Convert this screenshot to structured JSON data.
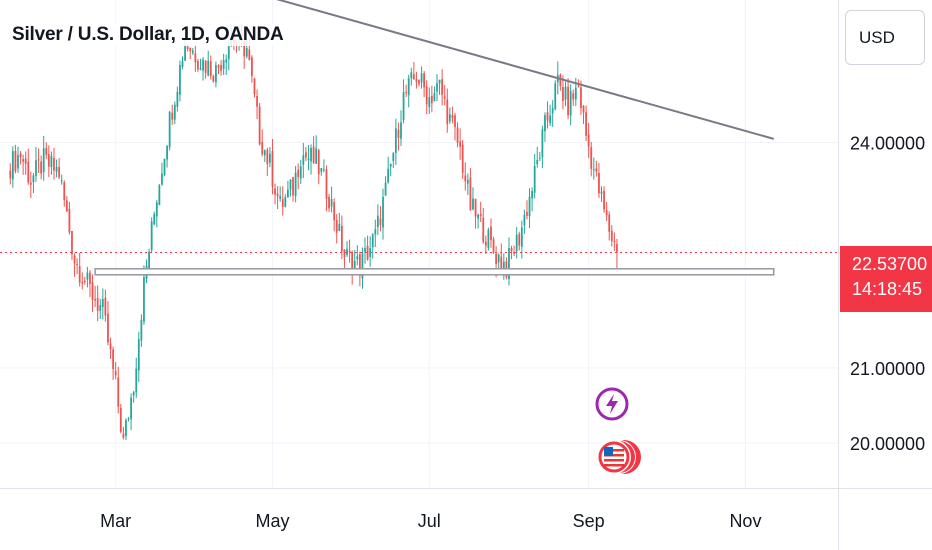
{
  "title": "Silver / U.S. Dollar, 1D, OANDA",
  "currency_button": "USD",
  "last_price": "22.53700",
  "countdown": "14:18:45",
  "colors": {
    "up": "#26a69a",
    "down": "#ef5350",
    "trendline": "#787b86",
    "price_line": "#f23645",
    "grid": "#f0f3fa"
  },
  "icons": [
    "lightning-icon",
    "us-flag-coin-icon"
  ],
  "chart_data": {
    "type": "candlestick",
    "title": "Silver / U.S. Dollar, 1D, OANDA",
    "y_tick_labels": [
      "24.00000",
      "21.00000",
      "20.00000"
    ],
    "y_ticks": [
      24,
      21,
      20
    ],
    "x_tick_labels": [
      "Mar",
      "May",
      "Jul",
      "Sep",
      "Nov"
    ],
    "x_ticks_day": [
      59,
      120,
      181,
      243,
      304
    ],
    "ylim": [
      19.4,
      25.9
    ],
    "xlim_day": [
      14,
      340
    ],
    "last_price": 22.537,
    "series": [
      {
        "x": [
          18,
          22,
          26,
          31,
          37,
          43,
          48,
          54,
          59,
          62,
          66,
          70,
          75,
          80,
          86,
          92,
          98,
          104,
          110,
          115,
          119,
          123,
          128,
          131,
          137,
          142,
          148,
          154,
          160,
          165,
          171,
          176,
          181,
          185,
          189,
          193,
          197,
          202,
          206,
          211,
          216,
          221,
          226,
          231,
          235,
          239,
          242,
          246,
          250,
          254
        ],
        "y": [
          23.7,
          23.85,
          23.5,
          23.75,
          23.6,
          22.45,
          22.1,
          21.75,
          20.75,
          20.0,
          20.8,
          22.1,
          23.3,
          24.3,
          25.35,
          25.1,
          24.95,
          25.4,
          25.25,
          24.1,
          23.7,
          23.15,
          23.4,
          23.85,
          23.75,
          23.3,
          22.5,
          22.35,
          22.75,
          23.5,
          24.6,
          24.9,
          24.6,
          24.75,
          24.3,
          23.9,
          23.15,
          22.85,
          22.55,
          22.35,
          22.75,
          23.4,
          24.2,
          24.8,
          24.5,
          24.75,
          24.1,
          23.5,
          22.95,
          22.54
        ]
      }
    ],
    "annotations": [
      {
        "type": "trendline",
        "from": {
          "day": 99,
          "price": 26.13
        },
        "to": {
          "day": 315,
          "price": 24.05
        }
      },
      {
        "type": "horizontal_band",
        "day_from": 51,
        "day_to": 315,
        "price": 22.28
      }
    ]
  }
}
